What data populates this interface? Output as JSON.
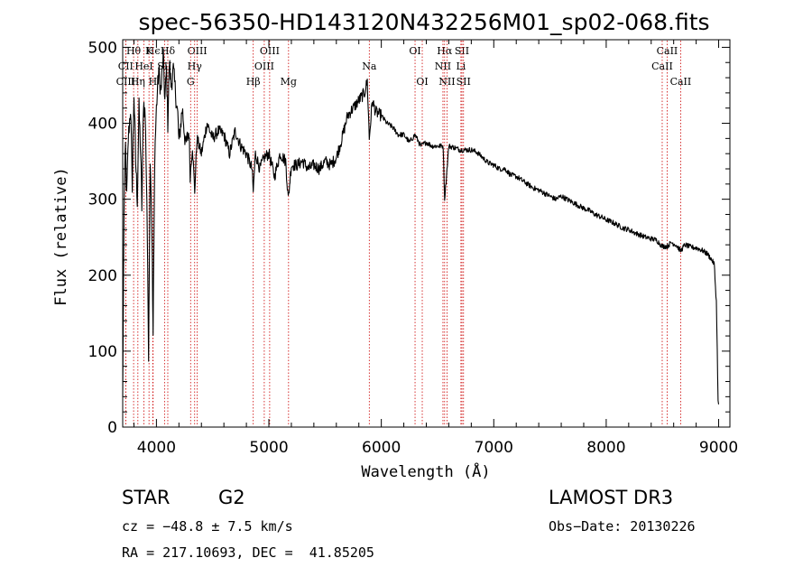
{
  "chart_data": {
    "type": "line",
    "title": "spec-56350-HD143120N432256M01_sp02-068.fits",
    "xlabel": "Wavelength (Å)",
    "ylabel": "Flux (relative)",
    "xlim": [
      3700,
      9100
    ],
    "ylim": [
      0,
      510
    ],
    "xticks": [
      4000,
      5000,
      6000,
      7000,
      8000,
      9000
    ],
    "yticks": [
      0,
      100,
      200,
      300,
      400,
      500
    ],
    "line_color": "#cc0000",
    "spectrum_knots": [
      [
        3700,
        40
      ],
      [
        3712,
        290
      ],
      [
        3725,
        370
      ],
      [
        3735,
        300
      ],
      [
        3750,
        380
      ],
      [
        3770,
        420
      ],
      [
        3785,
        320
      ],
      [
        3800,
        440
      ],
      [
        3815,
        350
      ],
      [
        3830,
        300
      ],
      [
        3845,
        420
      ],
      [
        3860,
        360
      ],
      [
        3870,
        290
      ],
      [
        3885,
        430
      ],
      [
        3900,
        410
      ],
      [
        3915,
        300
      ],
      [
        3930,
        100
      ],
      [
        3945,
        360
      ],
      [
        3960,
        260
      ],
      [
        3970,
        120
      ],
      [
        3985,
        360
      ],
      [
        4000,
        420
      ],
      [
        4020,
        470
      ],
      [
        4040,
        440
      ],
      [
        4060,
        490
      ],
      [
        4075,
        430
      ],
      [
        4090,
        470
      ],
      [
        4101,
        400
      ],
      [
        4115,
        480
      ],
      [
        4130,
        450
      ],
      [
        4150,
        470
      ],
      [
        4170,
        440
      ],
      [
        4190,
        410
      ],
      [
        4200,
        375
      ],
      [
        4230,
        420
      ],
      [
        4260,
        370
      ],
      [
        4290,
        390
      ],
      [
        4300,
        330
      ],
      [
        4320,
        370
      ],
      [
        4340,
        310
      ],
      [
        4360,
        380
      ],
      [
        4400,
        360
      ],
      [
        4450,
        400
      ],
      [
        4500,
        380
      ],
      [
        4550,
        390
      ],
      [
        4600,
        385
      ],
      [
        4650,
        360
      ],
      [
        4700,
        390
      ],
      [
        4750,
        370
      ],
      [
        4800,
        360
      ],
      [
        4850,
        340
      ],
      [
        4861,
        310
      ],
      [
        4880,
        360
      ],
      [
        4920,
        340
      ],
      [
        4960,
        355
      ],
      [
        5000,
        360
      ],
      [
        5050,
        330
      ],
      [
        5100,
        360
      ],
      [
        5150,
        350
      ],
      [
        5172,
        300
      ],
      [
        5200,
        345
      ],
      [
        5250,
        345
      ],
      [
        5300,
        350
      ],
      [
        5350,
        340
      ],
      [
        5400,
        345
      ],
      [
        5450,
        340
      ],
      [
        5500,
        350
      ],
      [
        5550,
        345
      ],
      [
        5600,
        355
      ],
      [
        5650,
        380
      ],
      [
        5700,
        410
      ],
      [
        5750,
        420
      ],
      [
        5800,
        430
      ],
      [
        5850,
        440
      ],
      [
        5875,
        455
      ],
      [
        5893,
        380
      ],
      [
        5920,
        430
      ],
      [
        5950,
        415
      ],
      [
        6000,
        410
      ],
      [
        6050,
        400
      ],
      [
        6100,
        395
      ],
      [
        6150,
        385
      ],
      [
        6200,
        385
      ],
      [
        6250,
        375
      ],
      [
        6300,
        385
      ],
      [
        6350,
        370
      ],
      [
        6400,
        375
      ],
      [
        6450,
        370
      ],
      [
        6500,
        370
      ],
      [
        6550,
        370
      ],
      [
        6563,
        300
      ],
      [
        6600,
        370
      ],
      [
        6650,
        368
      ],
      [
        6700,
        365
      ],
      [
        6750,
        365
      ],
      [
        6800,
        365
      ],
      [
        6850,
        362
      ],
      [
        6900,
        355
      ],
      [
        6950,
        348
      ],
      [
        7000,
        345
      ],
      [
        7050,
        340
      ],
      [
        7100,
        340
      ],
      [
        7150,
        332
      ],
      [
        7200,
        330
      ],
      [
        7250,
        325
      ],
      [
        7300,
        320
      ],
      [
        7350,
        315
      ],
      [
        7400,
        312
      ],
      [
        7450,
        308
      ],
      [
        7500,
        304
      ],
      [
        7550,
        300
      ],
      [
        7600,
        304
      ],
      [
        7650,
        300
      ],
      [
        7700,
        296
      ],
      [
        7750,
        292
      ],
      [
        7800,
        288
      ],
      [
        7850,
        285
      ],
      [
        7900,
        280
      ],
      [
        7950,
        277
      ],
      [
        8000,
        273
      ],
      [
        8050,
        270
      ],
      [
        8100,
        266
      ],
      [
        8150,
        262
      ],
      [
        8200,
        260
      ],
      [
        8250,
        256
      ],
      [
        8300,
        253
      ],
      [
        8350,
        250
      ],
      [
        8400,
        248
      ],
      [
        8450,
        246
      ],
      [
        8498,
        238
      ],
      [
        8542,
        238
      ],
      [
        8580,
        243
      ],
      [
        8620,
        240
      ],
      [
        8662,
        232
      ],
      [
        8700,
        240
      ],
      [
        8750,
        237
      ],
      [
        8800,
        236
      ],
      [
        8850,
        233
      ],
      [
        8900,
        228
      ],
      [
        8930,
        222
      ],
      [
        8960,
        215
      ],
      [
        8980,
        165
      ],
      [
        8995,
        35
      ],
      [
        9000,
        30
      ]
    ],
    "spectral_lines": [
      {
        "label": "Hθ",
        "wavelength": 3797,
        "row": 0
      },
      {
        "label": "K",
        "wavelength": 3934,
        "row": 0
      },
      {
        "label": "Hϵ",
        "wavelength": 3970,
        "row": 0
      },
      {
        "label": "CII",
        "wavelength": 3727,
        "row": 1
      },
      {
        "label": "HeI",
        "wavelength": 3889,
        "row": 1
      },
      {
        "label": "SII",
        "wavelength": 4072,
        "row": 1
      },
      {
        "label": "CIII",
        "wavelength": 3727,
        "row": 2
      },
      {
        "label": "Hη",
        "wavelength": 3835,
        "row": 2
      },
      {
        "label": "H",
        "wavelength": 3968,
        "row": 2
      },
      {
        "label": "Hδ",
        "wavelength": 4101,
        "row": 0
      },
      {
        "label": "OIII",
        "wavelength": 4363,
        "row": 0
      },
      {
        "label": "Hγ",
        "wavelength": 4340,
        "row": 1
      },
      {
        "label": "G",
        "wavelength": 4304,
        "row": 2
      },
      {
        "label": "OIII",
        "wavelength": 5007,
        "row": 0
      },
      {
        "label": "OIII",
        "wavelength": 4959,
        "row": 1
      },
      {
        "label": "Hβ",
        "wavelength": 4861,
        "row": 2
      },
      {
        "label": "Mg",
        "wavelength": 5175,
        "row": 2
      },
      {
        "label": "Na",
        "wavelength": 5893,
        "row": 1
      },
      {
        "label": "OI",
        "wavelength": 6300,
        "row": 0
      },
      {
        "label": "OI",
        "wavelength": 6364,
        "row": 2
      },
      {
        "label": "Hα",
        "wavelength": 6563,
        "row": 0
      },
      {
        "label": "NII",
        "wavelength": 6548,
        "row": 1
      },
      {
        "label": "NII",
        "wavelength": 6584,
        "row": 2
      },
      {
        "label": "SII",
        "wavelength": 6717,
        "row": 0
      },
      {
        "label": "Li",
        "wavelength": 6708,
        "row": 1
      },
      {
        "label": "SII",
        "wavelength": 6731,
        "row": 2
      },
      {
        "label": "CaII",
        "wavelength": 8542,
        "row": 0
      },
      {
        "label": "CaII",
        "wavelength": 8498,
        "row": 1
      },
      {
        "label": "CaII",
        "wavelength": 8662,
        "row": 2
      }
    ]
  },
  "footer": {
    "object_class": "STAR",
    "subclass": "G2",
    "survey": "LAMOST DR3",
    "cz": "cz = −48.8 ± 7.5 km/s",
    "obs_date": "Obs−Date: 20130226",
    "coords": "RA = 217.10693, DEC =  41.85205"
  }
}
